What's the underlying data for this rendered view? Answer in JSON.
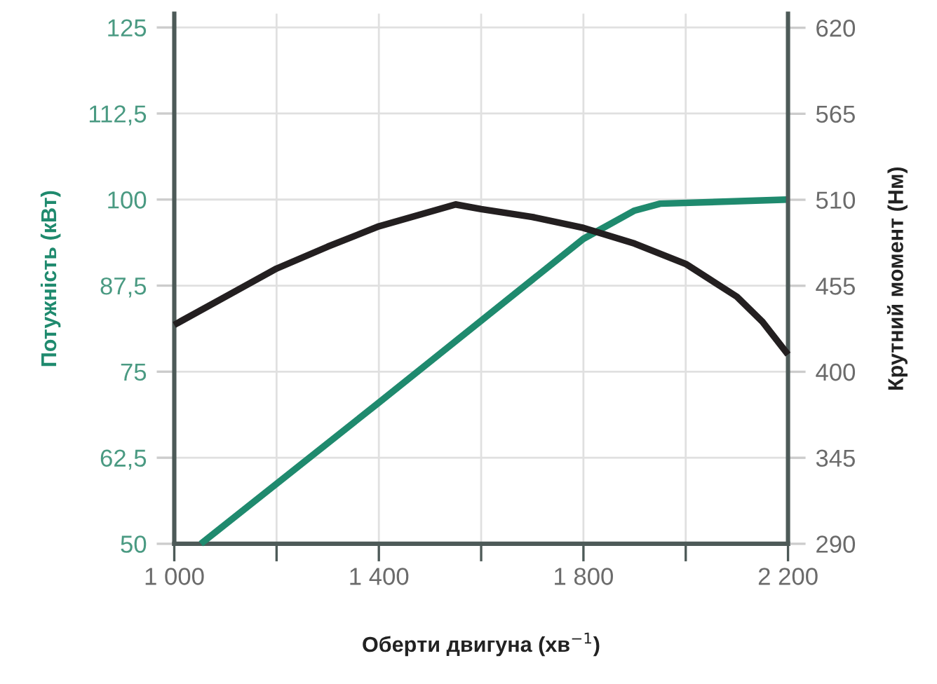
{
  "chart_data": {
    "type": "line",
    "xlabel": "Оберти двигуна (хв$^{−1}$)",
    "ylabel": "Потужність (кВт)",
    "y2label": "Крутний момент (Нм)",
    "xlim": [
      1000,
      2200
    ],
    "xticks": [
      {
        "value": 1000,
        "label": "1 000"
      },
      {
        "value": 1200,
        "label": null
      },
      {
        "value": 1400,
        "label": "1 400"
      },
      {
        "value": 1600,
        "label": null
      },
      {
        "value": 1800,
        "label": "1 800"
      },
      {
        "value": 2000,
        "label": null
      },
      {
        "value": 2200,
        "label": "2 200"
      }
    ],
    "ylim": [
      50,
      127
    ],
    "yticks": [
      50,
      {
        "value": 62.5,
        "label": "62,5"
      },
      75,
      {
        "value": 87.5,
        "label": "87,5"
      },
      100,
      {
        "value": 112.5,
        "label": "112,5"
      },
      125
    ],
    "y2lim": [
      290,
      629
    ],
    "y2ticks": [
      290,
      345,
      400,
      455,
      510,
      565,
      620
    ],
    "grid": true,
    "legend": false,
    "series": [
      {
        "color": "#1f8a6e",
        "x": [
          1052,
          1400,
          1800,
          1900,
          1950,
          2200
        ],
        "values": [
          50,
          70.5,
          94.3,
          98.4,
          99.4,
          100
        ]
      },
      {
        "color": "#231f20",
        "axis": "y2",
        "x": [
          1000,
          1100,
          1200,
          1300,
          1400,
          1550,
          1600,
          1700,
          1800,
          1900,
          2000,
          2100,
          2150,
          2200
        ],
        "values": [
          430,
          448,
          466,
          480,
          493,
          507,
          504,
          499,
          492,
          482,
          469,
          448,
          432,
          411
        ]
      }
    ]
  }
}
